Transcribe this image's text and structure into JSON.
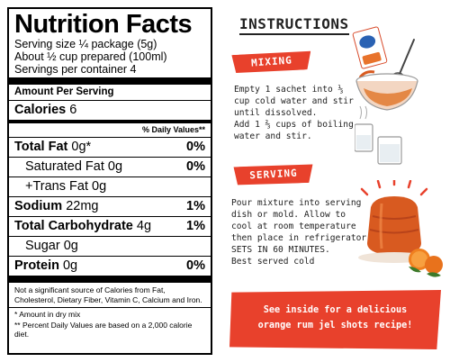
{
  "nutrition": {
    "title": "Nutrition Facts",
    "serving_size": "Serving size ¼ package (5g)",
    "prepared": "About ½ cup prepared (100ml)",
    "servings": "Servings per container 4",
    "amount_per_serving": "Amount Per Serving",
    "calories_label": "Calories",
    "calories_value": "6",
    "daily_values_header": "% Daily Values**",
    "rows": [
      {
        "label": "Total Fat",
        "amount": "0g*",
        "dv": "0%"
      },
      {
        "label": "Saturated Fat",
        "amount": "0g",
        "dv": "0%"
      },
      {
        "label": "+Trans Fat",
        "amount": "0g",
        "dv": ""
      },
      {
        "label": "Sodium",
        "amount": "22mg",
        "dv": "1%"
      },
      {
        "label": "Total Carbohydrate",
        "amount": "4g",
        "dv": "1%"
      },
      {
        "label": "Sugar",
        "amount": "0g",
        "dv": ""
      },
      {
        "label": "Protein",
        "amount": "0g",
        "dv": "0%"
      }
    ],
    "footnote_1": "Not a significant source of Calories from Fat, Cholesterol, Dietary Fiber, Vitamin C, Calcium and Iron.",
    "footnote_2": "* Amount in dry mix",
    "footnote_3": "** Percent Daily Values are based on a 2,000 calorie diet."
  },
  "instructions": {
    "title": "INSTRUCTIONS",
    "mixing_label": "MIXING",
    "mixing_text": "Empty 1 sachet into ⅓\ncup cold water and stir\nuntil dissolved.\nAdd 1 ⅔ cups of boiling\nwater and stir.",
    "serving_label": "SERVING",
    "serving_text": "Pour mixture into serving\ndish or mold. Allow to\ncool at room temperature\nthen place in refrigerator.\nSETS IN 60 MINUTES.\nBest served cold",
    "cta_line_1": "See inside for a delicious",
    "cta_line_2": "orange rum jel shots recipe!"
  },
  "colors": {
    "accent_red": "#e8412c",
    "jelly_orange": "#d85a20",
    "text_dark": "#222222"
  }
}
